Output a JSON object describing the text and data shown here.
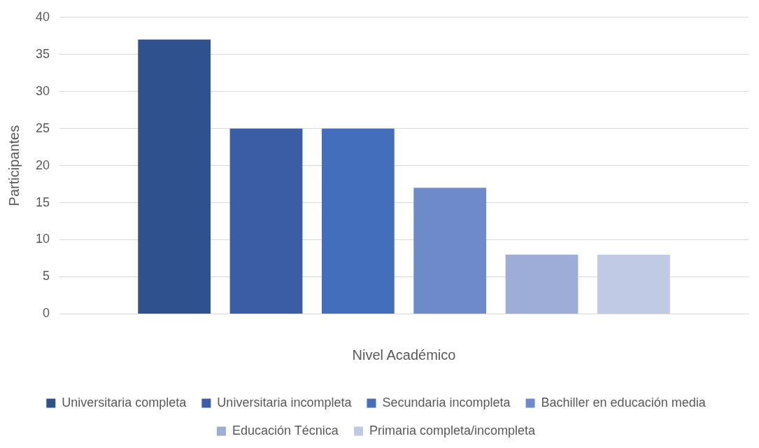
{
  "chart_data": {
    "type": "bar",
    "xlabel": "Nivel Académico",
    "ylabel": "Participantes",
    "categories": [
      null
    ],
    "series": [
      {
        "name": "Universitaria completa",
        "color": "#2f528f",
        "values": [
          37
        ]
      },
      {
        "name": "Universitaria incompleta",
        "color": "#3a5da6",
        "values": [
          25
        ]
      },
      {
        "name": "Secundaria incompleta",
        "color": "#426ebc",
        "values": [
          25
        ]
      },
      {
        "name": "Bachiller en educación media",
        "color": "#6f8acb",
        "values": [
          17
        ]
      },
      {
        "name": "Educación Técnica",
        "color": "#9dadd8",
        "values": [
          8
        ]
      },
      {
        "name": "Primaria completa/incompleta",
        "color": "#c0cae5",
        "values": [
          8
        ]
      }
    ],
    "ylim": [
      0,
      40
    ],
    "yticks": [
      0,
      5,
      10,
      15,
      20,
      25,
      30,
      35,
      40
    ],
    "grid": "y",
    "legend": "bottom"
  }
}
